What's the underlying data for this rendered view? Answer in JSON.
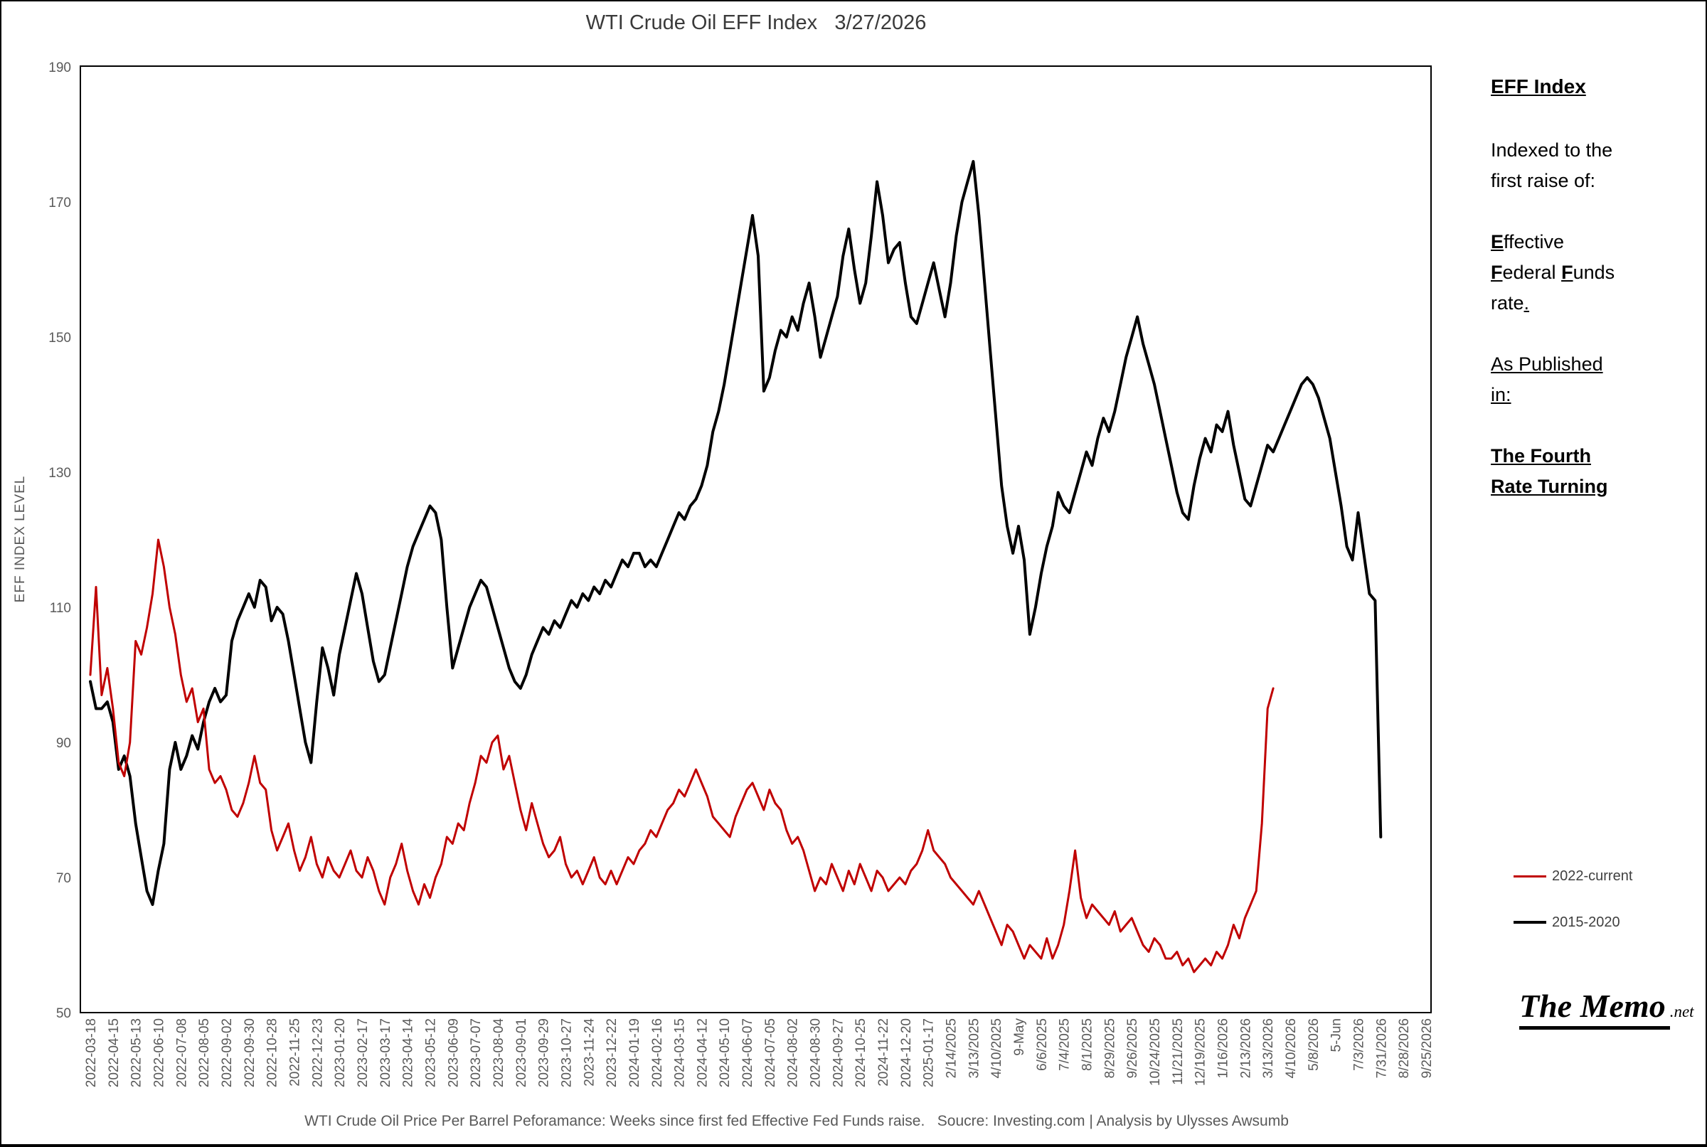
{
  "chart_data": {
    "type": "line",
    "title": "WTI Crude Oil EFF Index   3/27/2026",
    "ylabel": "EFF INDEX LEVEL",
    "ylim": [
      50,
      190
    ],
    "yticks": [
      50,
      70,
      90,
      110,
      130,
      150,
      170,
      190
    ],
    "grid": false,
    "x_unit": "weeks since first fed Effective Fed Funds raise (weekly data, tick labels every 4 weeks)",
    "x_tick_labels": [
      "2022-03-18",
      "2022-04-15",
      "2022-05-13",
      "2022-06-10",
      "2022-07-08",
      "2022-08-05",
      "2022-09-02",
      "2022-09-30",
      "2022-10-28",
      "2022-11-25",
      "2022-12-23",
      "2023-01-20",
      "2023-02-17",
      "2023-03-17",
      "2023-04-14",
      "2023-05-12",
      "2023-06-09",
      "2023-07-07",
      "2023-08-04",
      "2023-09-01",
      "2023-09-29",
      "2023-10-27",
      "2023-11-24",
      "2023-12-22",
      "2024-01-19",
      "2024-02-16",
      "2024-03-15",
      "2024-04-12",
      "2024-05-10",
      "2024-06-07",
      "2024-07-05",
      "2024-08-02",
      "2024-08-30",
      "2024-09-27",
      "2024-10-25",
      "2024-11-22",
      "2024-12-20",
      "2025-01-17",
      "2/14/2025",
      "3/13/2025",
      "4/10/2025",
      "9-May",
      "6/6/2025",
      "7/4/2025",
      "8/1/2025",
      "8/29/2025",
      "9/26/2025",
      "10/24/2025",
      "11/21/2025",
      "12/19/2025",
      "1/16/2026",
      "2/13/2026",
      "3/13/2026",
      "4/10/2026",
      "5/8/2026",
      "5-Jun",
      "7/3/2026",
      "7/31/2026",
      "8/28/2026",
      "9/25/2026"
    ],
    "weeks_per_tick": 4,
    "legend_position": "right-middle",
    "series": [
      {
        "name": "2022-current",
        "color": "#C00000",
        "stroke_width": 3,
        "start_week": 0,
        "values": [
          100,
          113,
          97,
          101,
          95,
          87,
          85,
          90,
          105,
          103,
          107,
          112,
          120,
          116,
          110,
          106,
          100,
          96,
          98,
          93,
          95,
          86,
          84,
          85,
          83,
          80,
          79,
          81,
          84,
          88,
          84,
          83,
          77,
          74,
          76,
          78,
          74,
          71,
          73,
          76,
          72,
          70,
          73,
          71,
          70,
          72,
          74,
          71,
          70,
          73,
          71,
          68,
          66,
          70,
          72,
          75,
          71,
          68,
          66,
          69,
          67,
          70,
          72,
          76,
          75,
          78,
          77,
          81,
          84,
          88,
          87,
          90,
          91,
          86,
          88,
          84,
          80,
          77,
          81,
          78,
          75,
          73,
          74,
          76,
          72,
          70,
          71,
          69,
          71,
          73,
          70,
          69,
          71,
          69,
          71,
          73,
          72,
          74,
          75,
          77,
          76,
          78,
          80,
          81,
          83,
          82,
          84,
          86,
          84,
          82,
          79,
          78,
          77,
          76,
          79,
          81,
          83,
          84,
          82,
          80,
          83,
          81,
          80,
          77,
          75,
          76,
          74,
          71,
          68,
          70,
          69,
          72,
          70,
          68,
          71,
          69,
          72,
          70,
          68,
          71,
          70,
          68,
          69,
          70,
          69,
          71,
          72,
          74,
          77,
          74,
          73,
          72,
          70,
          69,
          68,
          67,
          66,
          68,
          66,
          64,
          62,
          60,
          63,
          62,
          60,
          58,
          60,
          59,
          58,
          61,
          58,
          60,
          63,
          68,
          74,
          67,
          64,
          66,
          65,
          64,
          63,
          65,
          62,
          63,
          64,
          62,
          60,
          59,
          61,
          60,
          58,
          58,
          59,
          57,
          58,
          56,
          57,
          58,
          57,
          59,
          58,
          60,
          63,
          61,
          64,
          66,
          68,
          78,
          95,
          98
        ]
      },
      {
        "name": "2015-2020",
        "color": "#000000",
        "stroke_width": 4,
        "start_week": 0,
        "values": [
          99,
          95,
          95,
          96,
          93,
          86,
          88,
          85,
          78,
          73,
          68,
          66,
          71,
          75,
          86,
          90,
          86,
          88,
          91,
          89,
          93,
          96,
          98,
          96,
          97,
          105,
          108,
          110,
          112,
          110,
          114,
          113,
          108,
          110,
          109,
          105,
          100,
          95,
          90,
          87,
          96,
          104,
          101,
          97,
          103,
          107,
          111,
          115,
          112,
          107,
          102,
          99,
          100,
          104,
          108,
          112,
          116,
          119,
          121,
          123,
          125,
          124,
          120,
          110,
          101,
          104,
          107,
          110,
          112,
          114,
          113,
          110,
          107,
          104,
          101,
          99,
          98,
          100,
          103,
          105,
          107,
          106,
          108,
          107,
          109,
          111,
          110,
          112,
          111,
          113,
          112,
          114,
          113,
          115,
          117,
          116,
          118,
          118,
          116,
          117,
          116,
          118,
          120,
          122,
          124,
          123,
          125,
          126,
          128,
          131,
          136,
          139,
          143,
          148,
          153,
          158,
          163,
          168,
          162,
          142,
          144,
          148,
          151,
          150,
          153,
          151,
          155,
          158,
          153,
          147,
          150,
          153,
          156,
          162,
          166,
          160,
          155,
          158,
          165,
          173,
          168,
          161,
          163,
          164,
          158,
          153,
          152,
          155,
          158,
          161,
          157,
          153,
          158,
          165,
          170,
          173,
          176,
          168,
          158,
          148,
          138,
          128,
          122,
          118,
          122,
          117,
          106,
          110,
          115,
          119,
          122,
          127,
          125,
          124,
          127,
          130,
          133,
          131,
          135,
          138,
          136,
          139,
          143,
          147,
          150,
          153,
          149,
          146,
          143,
          139,
          135,
          131,
          127,
          124,
          123,
          128,
          132,
          135,
          133,
          137,
          136,
          139,
          134,
          130,
          126,
          125,
          128,
          131,
          134,
          133,
          135,
          137,
          139,
          141,
          143,
          144,
          143,
          141,
          138,
          135,
          130,
          125,
          119,
          117,
          124,
          118,
          112,
          111,
          76
        ]
      }
    ]
  },
  "side_panel": {
    "heading": "EFF Index",
    "para1_l1": "Indexed to the",
    "para1_l2": "first raise of:",
    "eff_term": {
      "e_bold": "E",
      "e_rest": "ffective",
      "f1_bold": "F",
      "f1_rest": "ederal ",
      "f2_bold": "F",
      "f2_rest": "unds",
      "rate": "rate",
      "period": "."
    },
    "para3_l1": "As Published",
    "para3_l2": "in:",
    "book_l1": "The Fourth",
    "book_l2": "Rate Turning"
  },
  "branding": {
    "title": "The Memo",
    "suffix": ".net"
  },
  "footer": {
    "caption": "WTI Crude Oil Price Per Barrel Peforamance: Weeks since first fed Effective Fed Funds raise.   Soucre: Investing.com | Analysis by Ulysses Awsumb"
  }
}
